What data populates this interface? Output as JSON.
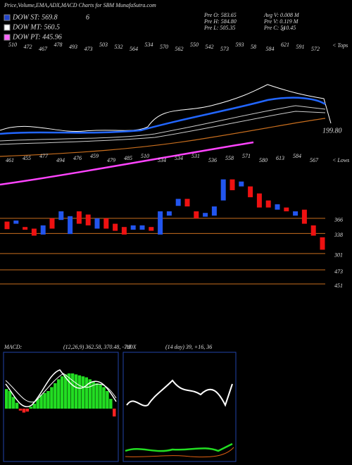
{
  "header": {
    "title": "Price,Volume,EMA,ADX,MACD Charts for SBM MunafaSutra.com",
    "legend": [
      {
        "label": "DOW ST: 569.8",
        "color": "#2244cc"
      },
      {
        "label": "DOW MT: 560.5",
        "color": "#ffffff"
      },
      {
        "label": "DOW PT: 445.96",
        "color": "#ff66ff"
      }
    ],
    "legend_note": "6",
    "stats": [
      "Pre  O: 583.65",
      "Avg V: 0.008  M",
      "Pre  H: 584.80",
      "Pre  V: 0.119 M",
      "Pre  L: 505.35",
      "Pre  C: 510.45"
    ],
    "stats_note": "0"
  },
  "chart_data": [
    {
      "type": "candlestick",
      "tops_label": "< Tops",
      "lows_label": "< Lows",
      "ema_label": "199.80",
      "tops": [
        "510",
        "472",
        "467",
        "478",
        "493",
        "473",
        "503",
        "532",
        "564",
        "534",
        "570",
        "562",
        "550",
        "542",
        "573",
        "593",
        "58",
        "584",
        "621",
        "591",
        "572"
      ],
      "lows": [
        "461",
        "455",
        "477",
        "494",
        "476",
        "459",
        "479",
        "485",
        "510",
        "534",
        "534",
        "531",
        "536",
        "558",
        "571",
        "580",
        "613",
        "584",
        "567"
      ],
      "open": [
        360,
        356,
        350,
        347,
        336,
        366,
        363,
        337,
        379,
        373,
        347,
        366,
        356,
        350,
        345,
        345,
        350,
        336,
        371,
        389,
        402,
        379,
        369,
        371,
        399,
        438,
        425,
        425,
        412,
        399,
        382,
        386,
        371,
        382,
        353,
        331
      ],
      "close": [
        346,
        362,
        345,
        334,
        353,
        347,
        379,
        370,
        356,
        353,
        366,
        347,
        343,
        336,
        353,
        353,
        343,
        379,
        379,
        402,
        388,
        366,
        376,
        388,
        438,
        418,
        434,
        405,
        386,
        386,
        392,
        379,
        379,
        356,
        334,
        308
      ],
      "up_color": "#2255ee",
      "down_color": "#ee1111",
      "ylim": [
        250,
        460
      ],
      "levels": [
        366,
        338,
        301
      ],
      "extra_levels": [
        473,
        451
      ]
    },
    {
      "type": "macd",
      "label": "MACD:",
      "params": "(12,26,9) 362.58, 370.48, -7.9",
      "values": [
        20,
        18,
        12,
        6,
        -2,
        -4,
        -3,
        2,
        5,
        10,
        14,
        16,
        18,
        22,
        26,
        30,
        33,
        35,
        36,
        36,
        35,
        34,
        33,
        32,
        30,
        28,
        26,
        25,
        22,
        18,
        10,
        -8
      ],
      "color": "#22dd22",
      "negative_color": "#ff2222"
    },
    {
      "type": "adx",
      "label": "ADX",
      "params": "(14 day) 39, +16, 36"
    }
  ]
}
